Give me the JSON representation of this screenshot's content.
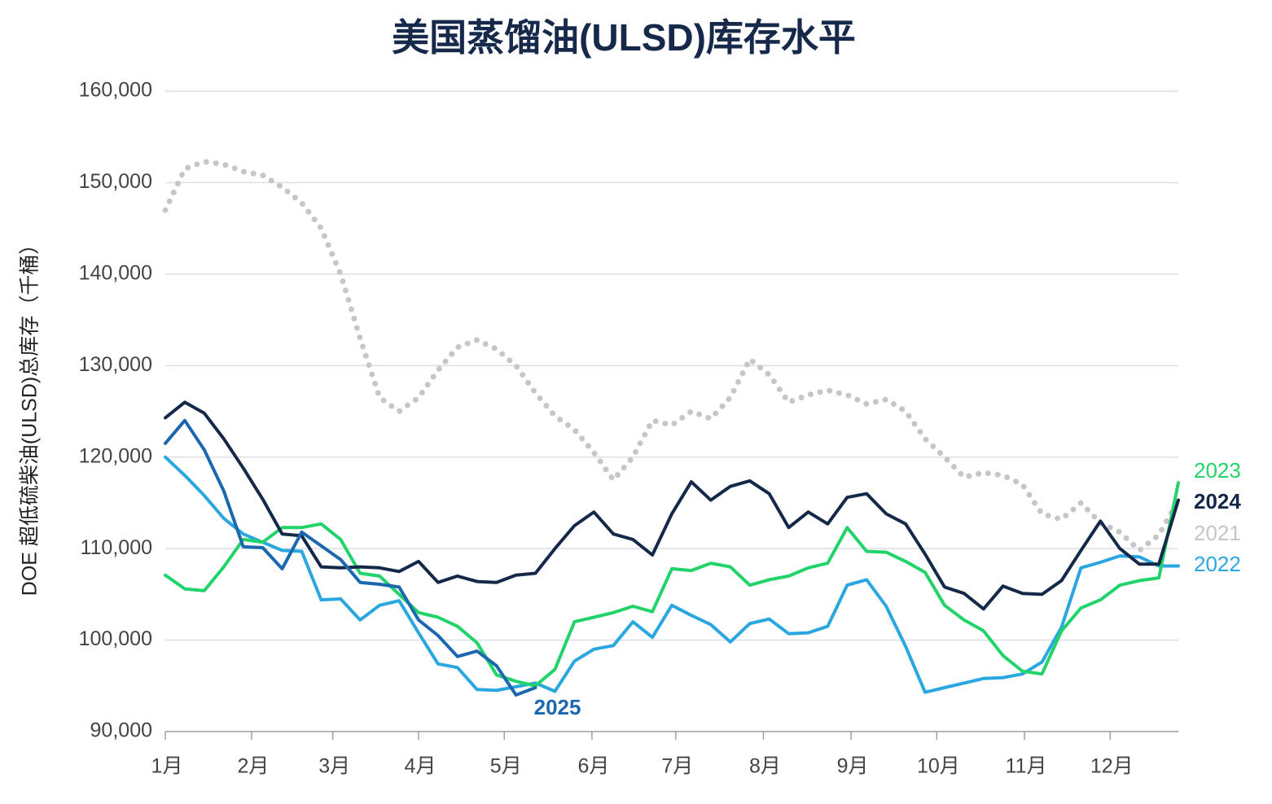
{
  "chart_data": {
    "type": "line",
    "title": "美国蒸馏油(ULSD)库存水平",
    "y_label": "DOE 超低硫柴油(ULSD)总库存（千桶）",
    "x": [
      0,
      1,
      2,
      3,
      4,
      5,
      6,
      7,
      8,
      9,
      10,
      11,
      12,
      13,
      14,
      15,
      16,
      17,
      18,
      19,
      20,
      21,
      22,
      23,
      24,
      25,
      26,
      27,
      28,
      29,
      30,
      31,
      32,
      33,
      34,
      35,
      36,
      37,
      38,
      39,
      40,
      41,
      42,
      43,
      44,
      45,
      46,
      47,
      48,
      49,
      50,
      51,
      52
    ],
    "xlim": [
      0,
      52
    ],
    "xticks": [
      {
        "value": 0,
        "label": "1月"
      },
      {
        "value": 4.43,
        "label": "2月"
      },
      {
        "value": 8.6,
        "label": "3月"
      },
      {
        "value": 13,
        "label": "4月"
      },
      {
        "value": 17.4,
        "label": "5月"
      },
      {
        "value": 21.9,
        "label": "6月"
      },
      {
        "value": 26.2,
        "label": "7月"
      },
      {
        "value": 30.7,
        "label": "8月"
      },
      {
        "value": 35.2,
        "label": "9月"
      },
      {
        "value": 39.6,
        "label": "10月"
      },
      {
        "value": 44.1,
        "label": "11月"
      },
      {
        "value": 48.5,
        "label": "12月"
      }
    ],
    "ylim": [
      90000,
      160000
    ],
    "yticks": [
      {
        "value": 90000,
        "label": "90,000"
      },
      {
        "value": 100000,
        "label": "100,000"
      },
      {
        "value": 110000,
        "label": "110,000"
      },
      {
        "value": 120000,
        "label": "120,000"
      },
      {
        "value": 130000,
        "label": "130,000"
      },
      {
        "value": 140000,
        "label": "140,000"
      },
      {
        "value": 150000,
        "label": "150,000"
      },
      {
        "value": 160000,
        "label": "160,000"
      }
    ],
    "grid": true,
    "series": [
      {
        "name": "2021",
        "color": "#c6c6c6",
        "style": "dotted",
        "values": [
          147000,
          151500,
          152300,
          152000,
          151200,
          150800,
          149500,
          147800,
          145000,
          140000,
          133000,
          126500,
          125000,
          126500,
          129500,
          132000,
          132800,
          131800,
          130000,
          127000,
          124500,
          123000,
          120500,
          117500,
          120000,
          124000,
          123500,
          125000,
          124200,
          126500,
          130700,
          129000,
          126000,
          126800,
          127300,
          126800,
          125800,
          126300,
          125000,
          122000,
          120000,
          117800,
          118300,
          118000,
          117000,
          113800,
          113200,
          115000,
          112800,
          111800,
          109800,
          111500,
          115300
        ]
      },
      {
        "name": "2022",
        "color": "#2aa7e0",
        "style": "solid",
        "values": [
          120000,
          118000,
          115800,
          113300,
          111600,
          110700,
          109800,
          109700,
          104400,
          104500,
          102200,
          103800,
          104300,
          100800,
          97400,
          97000,
          94600,
          94500,
          94900,
          95300,
          94400,
          97700,
          99000,
          99400,
          102000,
          100300,
          103800,
          102700,
          101700,
          99800,
          101800,
          102300,
          100700,
          100800,
          101500,
          106000,
          106600,
          103700,
          99300,
          94300,
          94800,
          95300,
          95800,
          95900,
          96300,
          97600,
          101400,
          107900,
          108500,
          109200,
          109100,
          108100,
          108100
        ]
      },
      {
        "name": "2023",
        "color": "#22d36a",
        "style": "solid",
        "values": [
          107100,
          105600,
          105400,
          108000,
          111000,
          110700,
          112300,
          112300,
          112700,
          111000,
          107300,
          107000,
          105000,
          103000,
          102500,
          101500,
          99700,
          96200,
          95500,
          95000,
          96800,
          102000,
          102500,
          103000,
          103700,
          103100,
          107800,
          107600,
          108400,
          108000,
          106000,
          106600,
          107000,
          107900,
          108400,
          112300,
          109700,
          109600,
          108600,
          107400,
          103800,
          102200,
          101000,
          98300,
          96600,
          96300,
          101000,
          103500,
          104400,
          106000,
          106500,
          106800,
          117200
        ]
      },
      {
        "name": "2024",
        "color": "#14294a",
        "style": "solid",
        "values": [
          124300,
          126000,
          124800,
          122000,
          118800,
          115400,
          111600,
          111400,
          108000,
          107900,
          108000,
          107900,
          107500,
          108600,
          106300,
          107000,
          106400,
          106300,
          107100,
          107300,
          110000,
          112500,
          114000,
          111600,
          111000,
          109300,
          113800,
          117300,
          115300,
          116800,
          117400,
          116000,
          112300,
          114000,
          112700,
          115600,
          116000,
          113800,
          112700,
          109400,
          105800,
          105100,
          103400,
          105900,
          105100,
          105000,
          106500,
          109800,
          113000,
          110000,
          108300,
          108300,
          115300
        ]
      },
      {
        "name": "2025",
        "color": "#1b68b0",
        "style": "solid",
        "values": [
          121500,
          124000,
          120800,
          116300,
          110200,
          110100,
          107800,
          111800,
          110300,
          108800,
          106300,
          106100,
          105800,
          102200,
          100500,
          98200,
          98800,
          97200,
          94000,
          94800,
          null,
          null,
          null,
          null,
          null,
          null,
          null,
          null,
          null,
          null,
          null,
          null,
          null,
          null,
          null,
          null,
          null,
          null,
          null,
          null,
          null,
          null,
          null,
          null,
          null,
          null,
          null,
          null,
          null,
          null,
          null,
          null,
          null
        ]
      }
    ]
  }
}
